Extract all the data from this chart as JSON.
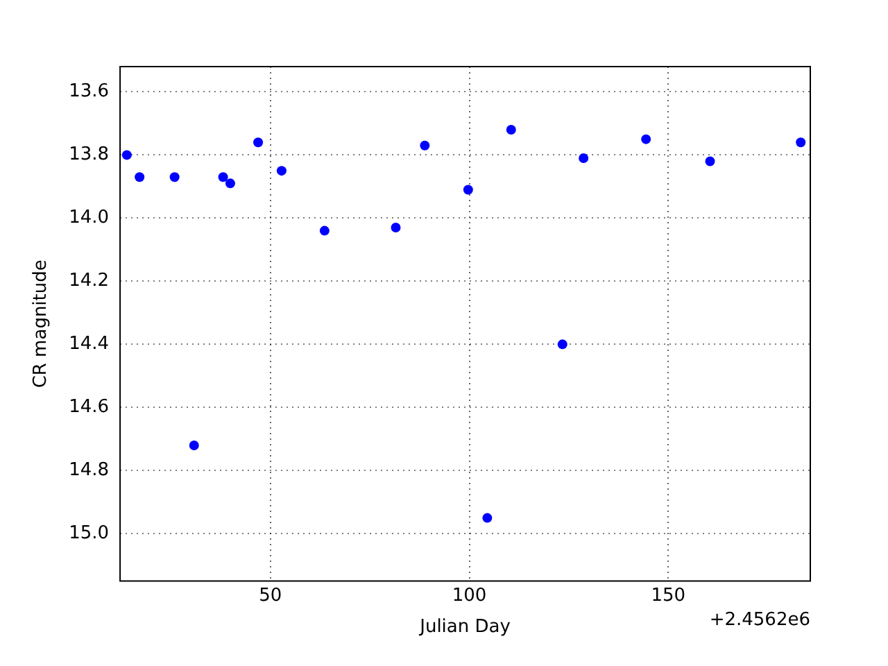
{
  "chart_data": {
    "type": "scatter",
    "xlabel": "Julian Day",
    "ylabel": "CR magnitude",
    "annotations": [
      "+2.4562e6"
    ],
    "xlim": [
      12.2,
      185.7
    ],
    "xticks": [
      50,
      100,
      150
    ],
    "ylim": [
      15.15,
      13.52
    ],
    "yticks": [
      13.6,
      13.8,
      {
        "value": 14,
        "label": "14.0"
      },
      14.2,
      14.4,
      14.6,
      14.8,
      {
        "value": 15,
        "label": "15.0"
      }
    ],
    "series": [
      {
        "color": "#0000ff",
        "x": [
          13.9,
          17.1,
          25.9,
          30.8,
          38.1,
          39.9,
          46.9,
          52.8,
          63.6,
          81.5,
          88.8,
          99.7,
          104.5,
          110.5,
          123.4,
          128.7,
          144.4,
          160.5,
          183.3
        ],
        "values": [
          13.8,
          13.87,
          13.87,
          14.72,
          13.87,
          13.89,
          13.76,
          13.85,
          14.04,
          14.03,
          13.77,
          13.91,
          14.95,
          13.72,
          14.4,
          13.81,
          13.75,
          13.82,
          13.76
        ]
      }
    ],
    "grid": true,
    "legend": false,
    "marker": "circle"
  }
}
